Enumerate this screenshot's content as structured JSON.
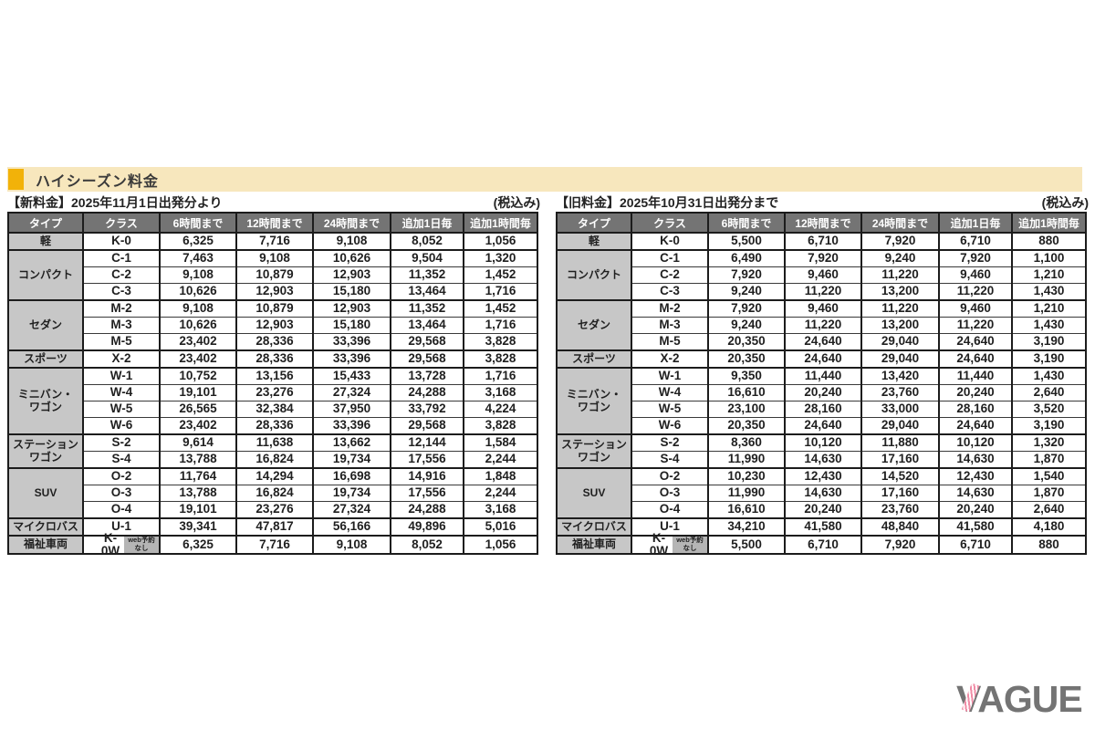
{
  "section": {
    "title": "ハイシーズン料金",
    "accent_color": "#F2B209",
    "band_color": "#F7E7BD"
  },
  "columns": [
    "タイプ",
    "クラス",
    "6時間まで",
    "12時間まで",
    "24時間まで",
    "追加1日毎",
    "追加1時間毎"
  ],
  "welfare_badge": "web予約\nなし",
  "tables": [
    {
      "caption": "【新料金】2025年11月1日出発分より",
      "tax_note": "(税込み)",
      "groups": [
        {
          "type": "軽",
          "rows": [
            {
              "class": "K-0",
              "prices": [
                "6,325",
                "7,716",
                "9,108",
                "8,052",
                "1,056"
              ]
            }
          ]
        },
        {
          "type": "コンパクト",
          "rows": [
            {
              "class": "C-1",
              "prices": [
                "7,463",
                "9,108",
                "10,626",
                "9,504",
                "1,320"
              ]
            },
            {
              "class": "C-2",
              "prices": [
                "9,108",
                "10,879",
                "12,903",
                "11,352",
                "1,452"
              ]
            },
            {
              "class": "C-3",
              "prices": [
                "10,626",
                "12,903",
                "15,180",
                "13,464",
                "1,716"
              ]
            }
          ]
        },
        {
          "type": "セダン",
          "rows": [
            {
              "class": "M-2",
              "prices": [
                "9,108",
                "10,879",
                "12,903",
                "11,352",
                "1,452"
              ]
            },
            {
              "class": "M-3",
              "prices": [
                "10,626",
                "12,903",
                "15,180",
                "13,464",
                "1,716"
              ]
            },
            {
              "class": "M-5",
              "prices": [
                "23,402",
                "28,336",
                "33,396",
                "29,568",
                "3,828"
              ]
            }
          ]
        },
        {
          "type": "スポーツ",
          "rows": [
            {
              "class": "X-2",
              "prices": [
                "23,402",
                "28,336",
                "33,396",
                "29,568",
                "3,828"
              ]
            }
          ]
        },
        {
          "type": "ミニバン・\nワゴン",
          "rows": [
            {
              "class": "W-1",
              "prices": [
                "10,752",
                "13,156",
                "15,433",
                "13,728",
                "1,716"
              ]
            },
            {
              "class": "W-4",
              "prices": [
                "19,101",
                "23,276",
                "27,324",
                "24,288",
                "3,168"
              ]
            },
            {
              "class": "W-5",
              "prices": [
                "26,565",
                "32,384",
                "37,950",
                "33,792",
                "4,224"
              ]
            },
            {
              "class": "W-6",
              "prices": [
                "23,402",
                "28,336",
                "33,396",
                "29,568",
                "3,828"
              ]
            }
          ]
        },
        {
          "type": "ステーション\nワゴン",
          "rows": [
            {
              "class": "S-2",
              "prices": [
                "9,614",
                "11,638",
                "13,662",
                "12,144",
                "1,584"
              ]
            },
            {
              "class": "S-4",
              "prices": [
                "13,788",
                "16,824",
                "19,734",
                "17,556",
                "2,244"
              ]
            }
          ]
        },
        {
          "type": "SUV",
          "rows": [
            {
              "class": "O-2",
              "prices": [
                "11,764",
                "14,294",
                "16,698",
                "14,916",
                "1,848"
              ]
            },
            {
              "class": "O-3",
              "prices": [
                "13,788",
                "16,824",
                "19,734",
                "17,556",
                "2,244"
              ]
            },
            {
              "class": "O-4",
              "prices": [
                "19,101",
                "23,276",
                "27,324",
                "24,288",
                "3,168"
              ]
            }
          ]
        },
        {
          "type": "マイクロバス",
          "rows": [
            {
              "class": "U-1",
              "prices": [
                "39,341",
                "47,817",
                "56,166",
                "49,896",
                "5,016"
              ]
            }
          ]
        },
        {
          "type": "福祉車両",
          "rows": [
            {
              "class": "K-0W",
              "badge": true,
              "prices": [
                "6,325",
                "7,716",
                "9,108",
                "8,052",
                "1,056"
              ]
            }
          ]
        }
      ]
    },
    {
      "caption": "【旧料金】2025年10月31日出発分まで",
      "tax_note": "(税込み)",
      "groups": [
        {
          "type": "軽",
          "rows": [
            {
              "class": "K-0",
              "prices": [
                "5,500",
                "6,710",
                "7,920",
                "6,710",
                "880"
              ]
            }
          ]
        },
        {
          "type": "コンパクト",
          "rows": [
            {
              "class": "C-1",
              "prices": [
                "6,490",
                "7,920",
                "9,240",
                "7,920",
                "1,100"
              ]
            },
            {
              "class": "C-2",
              "prices": [
                "7,920",
                "9,460",
                "11,220",
                "9,460",
                "1,210"
              ]
            },
            {
              "class": "C-3",
              "prices": [
                "9,240",
                "11,220",
                "13,200",
                "11,220",
                "1,430"
              ]
            }
          ]
        },
        {
          "type": "セダン",
          "rows": [
            {
              "class": "M-2",
              "prices": [
                "7,920",
                "9,460",
                "11,220",
                "9,460",
                "1,210"
              ]
            },
            {
              "class": "M-3",
              "prices": [
                "9,240",
                "11,220",
                "13,200",
                "11,220",
                "1,430"
              ]
            },
            {
              "class": "M-5",
              "prices": [
                "20,350",
                "24,640",
                "29,040",
                "24,640",
                "3,190"
              ]
            }
          ]
        },
        {
          "type": "スポーツ",
          "rows": [
            {
              "class": "X-2",
              "prices": [
                "20,350",
                "24,640",
                "29,040",
                "24,640",
                "3,190"
              ]
            }
          ]
        },
        {
          "type": "ミニバン・\nワゴン",
          "rows": [
            {
              "class": "W-1",
              "prices": [
                "9,350",
                "11,440",
                "13,420",
                "11,440",
                "1,430"
              ]
            },
            {
              "class": "W-4",
              "prices": [
                "16,610",
                "20,240",
                "23,760",
                "20,240",
                "2,640"
              ]
            },
            {
              "class": "W-5",
              "prices": [
                "23,100",
                "28,160",
                "33,000",
                "28,160",
                "3,520"
              ]
            },
            {
              "class": "W-6",
              "prices": [
                "20,350",
                "24,640",
                "29,040",
                "24,640",
                "3,190"
              ]
            }
          ]
        },
        {
          "type": "ステーション\nワゴン",
          "rows": [
            {
              "class": "S-2",
              "prices": [
                "8,360",
                "10,120",
                "11,880",
                "10,120",
                "1,320"
              ]
            },
            {
              "class": "S-4",
              "prices": [
                "11,990",
                "14,630",
                "17,160",
                "14,630",
                "1,870"
              ]
            }
          ]
        },
        {
          "type": "SUV",
          "rows": [
            {
              "class": "O-2",
              "prices": [
                "10,230",
                "12,430",
                "14,520",
                "12,430",
                "1,540"
              ]
            },
            {
              "class": "O-3",
              "prices": [
                "11,990",
                "14,630",
                "17,160",
                "14,630",
                "1,870"
              ]
            },
            {
              "class": "O-4",
              "prices": [
                "16,610",
                "20,240",
                "23,760",
                "20,240",
                "2,640"
              ]
            }
          ]
        },
        {
          "type": "マイクロバス",
          "rows": [
            {
              "class": "U-1",
              "prices": [
                "34,210",
                "41,580",
                "48,840",
                "41,580",
                "4,180"
              ]
            }
          ]
        },
        {
          "type": "福祉車両",
          "rows": [
            {
              "class": "K-0W",
              "badge": true,
              "prices": [
                "5,500",
                "6,710",
                "7,920",
                "6,710",
                "880"
              ]
            }
          ]
        }
      ]
    }
  ],
  "logo": {
    "text": "VAGUE",
    "text_color": "#747474",
    "stripe_color": "#F08CA6"
  }
}
